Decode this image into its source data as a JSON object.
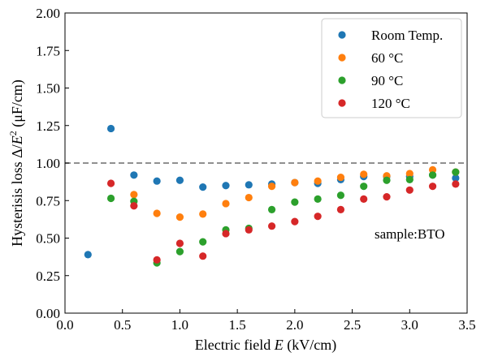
{
  "chart_data": {
    "type": "scatter",
    "xlabel": "Electric field E   (kV/cm)",
    "ylabel": "Hysterisis loss ΔE⁻²  (μF/cm)",
    "xlim": [
      0.0,
      3.5
    ],
    "ylim": [
      0.0,
      2.0
    ],
    "xticks": [
      "0.0",
      "0.5",
      "1.0",
      "1.5",
      "2.0",
      "2.5",
      "3.0",
      "3.5"
    ],
    "yticks": [
      "0.00",
      "0.25",
      "0.50",
      "0.75",
      "1.00",
      "1.25",
      "1.50",
      "1.75",
      "2.00"
    ],
    "grid": false,
    "legend_position": "top-right",
    "reference_line": {
      "y": 1.0,
      "style": "dashed",
      "color": "#808080"
    },
    "annotation": "sample:BTO",
    "series": [
      {
        "name": "Room Temp.",
        "color": "#1f77b4",
        "x": [
          0.2,
          0.4,
          0.6,
          0.8,
          1.0,
          1.2,
          1.4,
          1.6,
          1.8,
          2.0,
          2.2,
          2.4,
          2.6,
          2.8,
          3.0,
          3.2,
          3.4
        ],
        "y": [
          0.39,
          1.23,
          0.92,
          0.88,
          0.885,
          0.84,
          0.85,
          0.855,
          0.86,
          0.87,
          0.865,
          0.89,
          0.91,
          0.91,
          0.91,
          0.92,
          0.9
        ]
      },
      {
        "name": "60  °C",
        "color": "#ff7f0e",
        "x": [
          0.6,
          0.8,
          1.0,
          1.2,
          1.4,
          1.6,
          1.8,
          2.0,
          2.2,
          2.4,
          2.6,
          2.8,
          3.0,
          3.2,
          3.4
        ],
        "y": [
          0.79,
          0.665,
          0.64,
          0.66,
          0.73,
          0.77,
          0.845,
          0.87,
          0.88,
          0.905,
          0.925,
          0.915,
          0.93,
          0.955,
          0.94
        ]
      },
      {
        "name": "90  °C",
        "color": "#2ca02c",
        "x": [
          0.4,
          0.6,
          0.8,
          1.0,
          1.2,
          1.4,
          1.6,
          1.8,
          2.0,
          2.2,
          2.4,
          2.6,
          2.8,
          3.0,
          3.2,
          3.4
        ],
        "y": [
          0.765,
          0.745,
          0.335,
          0.41,
          0.475,
          0.555,
          0.565,
          0.69,
          0.74,
          0.76,
          0.785,
          0.845,
          0.885,
          0.89,
          0.92,
          0.94
        ]
      },
      {
        "name": "120 °C",
        "color": "#d62728",
        "x": [
          0.4,
          0.6,
          0.8,
          1.0,
          1.2,
          1.4,
          1.6,
          1.8,
          2.0,
          2.2,
          2.4,
          2.6,
          2.8,
          3.0,
          3.2,
          3.4
        ],
        "y": [
          0.865,
          0.715,
          0.355,
          0.465,
          0.38,
          0.53,
          0.555,
          0.58,
          0.61,
          0.645,
          0.69,
          0.76,
          0.775,
          0.82,
          0.845,
          0.86
        ]
      }
    ]
  }
}
